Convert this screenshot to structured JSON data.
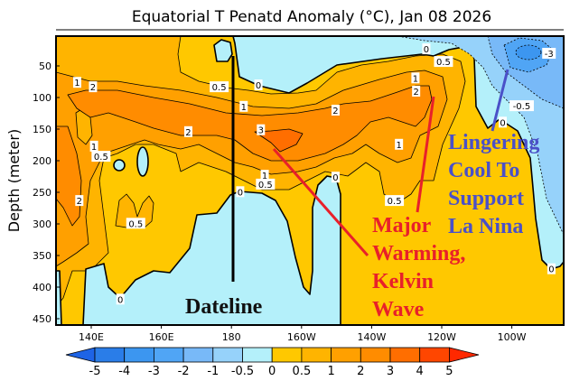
{
  "chart_data": {
    "type": "contour",
    "title": "Equatorial T Penatd Anomaly (°C), Jan 08 2026",
    "xlabel": "",
    "ylabel": "Depth (meter)",
    "x_ticks": [
      {
        "label": "140E",
        "lon": 140
      },
      {
        "label": "160E",
        "lon": 160
      },
      {
        "label": "180",
        "lon": 180
      },
      {
        "label": "160W",
        "lon": 200
      },
      {
        "label": "140W",
        "lon": 220
      },
      {
        "label": "120W",
        "lon": 240
      },
      {
        "label": "100W",
        "lon": 260
      }
    ],
    "y_ticks": [
      50,
      100,
      150,
      200,
      250,
      300,
      350,
      400,
      450
    ],
    "ylim": [
      0,
      455
    ],
    "xlim_lon_east": [
      130,
      275
    ],
    "colorbar": {
      "labels": [
        "-5",
        "-4",
        "-3",
        "-2",
        "-1",
        "-0.5",
        "0",
        "0.5",
        "1",
        "2",
        "3",
        "4",
        "5"
      ],
      "colors": [
        "#1e64e6",
        "#2a7de8",
        "#3c96f0",
        "#50a5f5",
        "#78b9f8",
        "#96d2fa",
        "#b4f0fa",
        "#ffc800",
        "#ffb400",
        "#ffa000",
        "#ff8c00",
        "#ff6e00",
        "#ff4600",
        "#ff2800"
      ]
    },
    "contour_labels": [
      {
        "text": "1",
        "lon": 136,
        "depth": 76
      },
      {
        "text": "2",
        "lon": 140.5,
        "depth": 83
      },
      {
        "text": "0.5",
        "lon": 176.5,
        "depth": 83
      },
      {
        "text": "0",
        "lon": 187.7,
        "depth": 80
      },
      {
        "text": "1",
        "lon": 183.5,
        "depth": 114
      },
      {
        "text": "2",
        "lon": 167.7,
        "depth": 154
      },
      {
        "text": "3",
        "lon": 188.4,
        "depth": 151
      },
      {
        "text": "1",
        "lon": 140.8,
        "depth": 177
      },
      {
        "text": "0.5",
        "lon": 142.8,
        "depth": 193
      },
      {
        "text": "2",
        "lon": 136.6,
        "depth": 263
      },
      {
        "text": "0.5",
        "lon": 152.7,
        "depth": 299
      },
      {
        "text": "1",
        "lon": 189.5,
        "depth": 223
      },
      {
        "text": "0.5",
        "lon": 189.7,
        "depth": 237
      },
      {
        "text": "0",
        "lon": 182.5,
        "depth": 249
      },
      {
        "text": "2",
        "lon": 209.7,
        "depth": 120
      },
      {
        "text": "0",
        "lon": 209.7,
        "depth": 226
      },
      {
        "text": "0.5",
        "lon": 226.5,
        "depth": 263
      },
      {
        "text": "1",
        "lon": 227.8,
        "depth": 174
      },
      {
        "text": "2",
        "lon": 232.7,
        "depth": 90
      },
      {
        "text": "1",
        "lon": 232.5,
        "depth": 69
      },
      {
        "text": "0.5",
        "lon": 240.5,
        "depth": 43
      },
      {
        "text": "0",
        "lon": 235.6,
        "depth": 23
      },
      {
        "text": "-3",
        "lon": 270.6,
        "depth": 30
      },
      {
        "text": "-0.5",
        "lon": 262.8,
        "depth": 113
      },
      {
        "text": "0",
        "lon": 257.4,
        "depth": 139
      },
      {
        "text": "0",
        "lon": 271.3,
        "depth": 371
      },
      {
        "text": "0",
        "lon": 148.3,
        "depth": 419
      }
    ],
    "annotations": {
      "dateline": "Dateline",
      "warming": [
        "Major",
        "Warming,",
        "Kelvin",
        "Wave"
      ],
      "warming_color": "#e8202a",
      "cool": [
        "Lingering",
        "Cool To",
        "Support",
        "La Nina"
      ],
      "cool_color": "#4a50c8"
    }
  }
}
